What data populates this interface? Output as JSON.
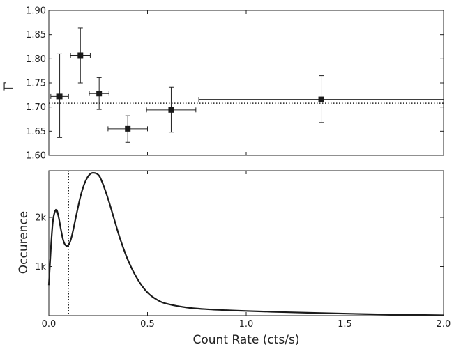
{
  "chart_data": [
    {
      "type": "scatter",
      "title": "",
      "xlabel": "",
      "ylabel": "Γ",
      "xlim": [
        0.0,
        2.0
      ],
      "ylim": [
        1.6,
        1.9
      ],
      "yticks": [
        "1.60",
        "1.65",
        "1.70",
        "1.75",
        "1.80",
        "1.85",
        "1.90"
      ],
      "grid": false,
      "reference_line": {
        "y": 1.708,
        "style": "dotted"
      },
      "series": [
        {
          "marker": "square",
          "points": [
            {
              "x": 0.055,
              "y": 1.722,
              "xerr": 0.045,
              "yerr_low": 0.085,
              "yerr_high": 0.088
            },
            {
              "x": 0.16,
              "y": 1.807,
              "xerr": 0.05,
              "yerr_low": 0.057,
              "yerr_high": 0.057
            },
            {
              "x": 0.255,
              "y": 1.728,
              "xerr": 0.05,
              "yerr_low": 0.033,
              "yerr_high": 0.033
            },
            {
              "x": 0.4,
              "y": 1.655,
              "xerr": 0.1,
              "yerr_low": 0.028,
              "yerr_high": 0.027
            },
            {
              "x": 0.62,
              "y": 1.694,
              "xerr": 0.125,
              "yerr_low": 0.046,
              "yerr_high": 0.047
            },
            {
              "x": 1.38,
              "y": 1.716,
              "xerr": 0.62,
              "yerr_low": 0.048,
              "yerr_high": 0.049
            }
          ]
        }
      ]
    },
    {
      "type": "line",
      "title": "",
      "xlabel": "Count Rate (cts/s)",
      "ylabel": "Occurence",
      "xlim": [
        0.0,
        2.0
      ],
      "ylim": [
        0,
        2950
      ],
      "xticks": [
        "0.0",
        "0.5",
        "1.0",
        "1.5",
        "2.0"
      ],
      "yticks": [
        {
          "value": 1000,
          "label": "1k"
        },
        {
          "value": 2000,
          "label": "2k"
        }
      ],
      "grid": false,
      "reference_line": {
        "x": 0.1,
        "style": "dotted"
      },
      "x": [
        0.0,
        0.01,
        0.02,
        0.03,
        0.04,
        0.05,
        0.06,
        0.07,
        0.08,
        0.09,
        0.1,
        0.11,
        0.12,
        0.14,
        0.16,
        0.18,
        0.2,
        0.22,
        0.25,
        0.27,
        0.3,
        0.33,
        0.36,
        0.4,
        0.45,
        0.5,
        0.55,
        0.6,
        0.7,
        0.8,
        0.9,
        1.0,
        1.2,
        1.4,
        1.6,
        1.8,
        2.0
      ],
      "values": [
        620,
        1350,
        1900,
        2110,
        2150,
        2000,
        1780,
        1580,
        1460,
        1420,
        1440,
        1530,
        1680,
        2060,
        2420,
        2680,
        2840,
        2905,
        2870,
        2720,
        2380,
        1980,
        1580,
        1140,
        740,
        470,
        320,
        240,
        165,
        130,
        110,
        95,
        70,
        50,
        32,
        18,
        8
      ]
    }
  ]
}
